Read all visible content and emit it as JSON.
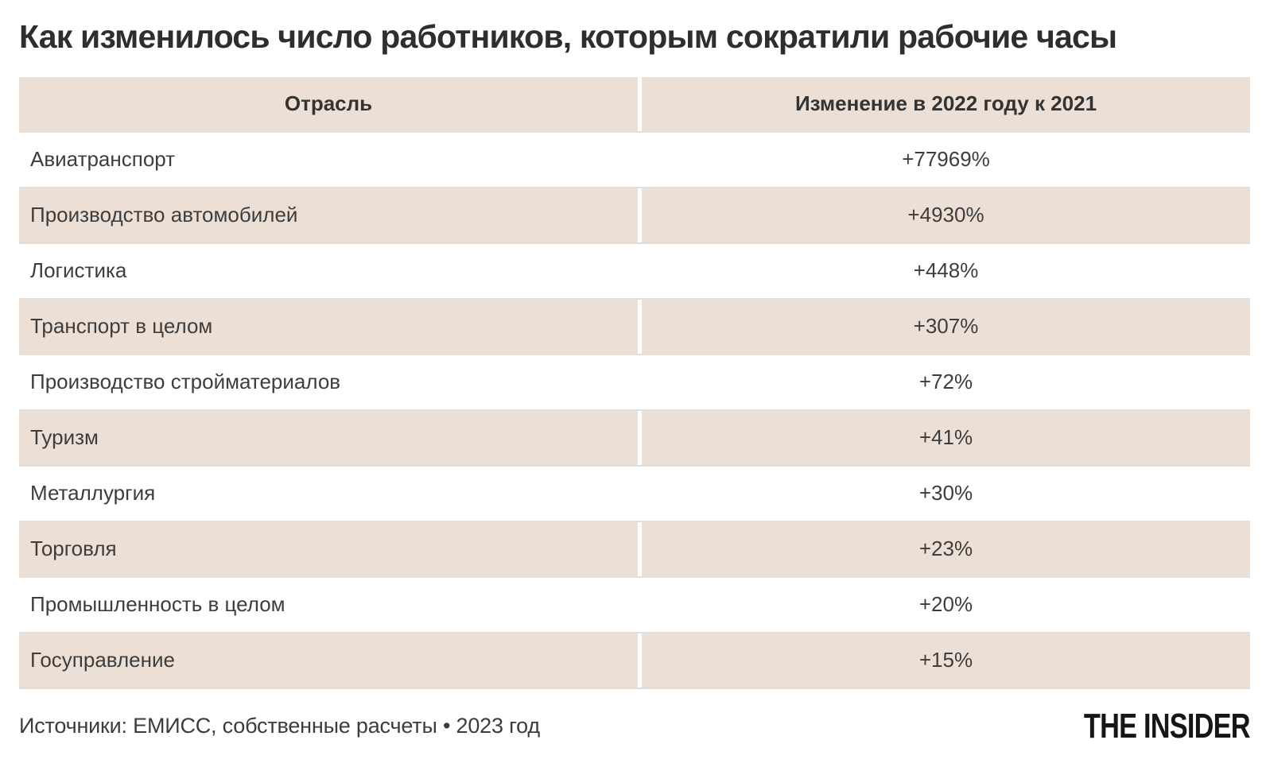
{
  "title": "Как изменилось число работников, которым сократили рабочие часы",
  "table": {
    "headers": {
      "industry": "Отрасль",
      "change": "Изменение в 2022 году к 2021"
    },
    "rows": [
      {
        "industry": "Авиатранспорт",
        "change": "+77969%"
      },
      {
        "industry": "Производство автомобилей",
        "change": "+4930%"
      },
      {
        "industry": "Логистика",
        "change": "+448%"
      },
      {
        "industry": "Транспорт в целом",
        "change": "+307%"
      },
      {
        "industry": "Производство стройматериалов",
        "change": "+72%"
      },
      {
        "industry": "Туризм",
        "change": "+41%"
      },
      {
        "industry": "Металлургия",
        "change": "+30%"
      },
      {
        "industry": "Торговля",
        "change": "+23%"
      },
      {
        "industry": "Промышленность в целом",
        "change": "+20%"
      },
      {
        "industry": "Госуправление",
        "change": "+15%"
      }
    ]
  },
  "footer": {
    "source": "Источники: ЕМИСС, собственные расчеты • 2023 год",
    "brand": "THE INSIDER"
  },
  "colors": {
    "row_shaded": "#ECE0D6",
    "row_separator": "#E2DFDC",
    "title_text": "#2E2E2E",
    "body_text": "#3D3D3D",
    "brand_text": "#161616",
    "background": "#FFFFFF"
  },
  "chart_data": {
    "type": "table",
    "title": "Как изменилось число работников, которым сократили рабочие часы",
    "columns": [
      "Отрасль",
      "Изменение в 2022 году к 2021"
    ],
    "categories": [
      "Авиатранспорт",
      "Производство автомобилей",
      "Логистика",
      "Транспорт в целом",
      "Производство стройматериалов",
      "Туризм",
      "Металлургия",
      "Торговля",
      "Промышленность в целом",
      "Госуправление"
    ],
    "values_percent_change": [
      77969,
      4930,
      448,
      307,
      72,
      41,
      30,
      23,
      20,
      15
    ],
    "value_labels": [
      "+77969%",
      "+4930%",
      "+448%",
      "+307%",
      "+72%",
      "+41%",
      "+30%",
      "+23%",
      "+20%",
      "+15%"
    ],
    "source": "Источники: ЕМИСС, собственные расчеты • 2023 год",
    "publisher": "THE INSIDER"
  }
}
